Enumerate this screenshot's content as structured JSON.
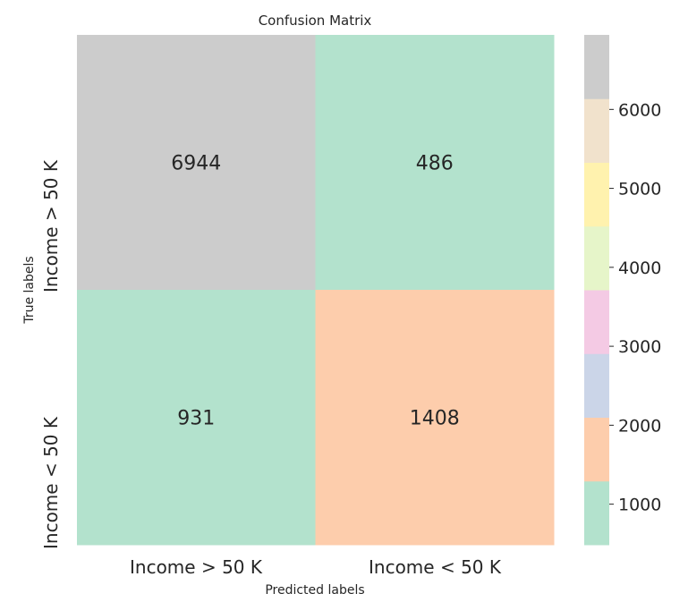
{
  "chart_data": {
    "type": "heatmap",
    "title": "Confusion Matrix",
    "xlabel": "Predicted labels",
    "ylabel": "True labels",
    "x_categories": [
      "Income > 50 K",
      "Income < 50 K"
    ],
    "y_categories": [
      "Income > 50 K",
      "Income < 50 K"
    ],
    "values": [
      [
        6944,
        486
      ],
      [
        931,
        1408
      ]
    ],
    "colorbar": {
      "range": [
        486,
        6944
      ],
      "ticks": [
        1000,
        2000,
        3000,
        4000,
        5000,
        6000
      ],
      "tick_labels": [
        "1000",
        "2000",
        "3000",
        "4000",
        "5000",
        "6000"
      ],
      "colors": [
        "#b3e2cd",
        "#fdcdac",
        "#cbd5e8",
        "#f4cae4",
        "#e6f5c9",
        "#fff2ae",
        "#f1e2cc",
        "#cccccc"
      ]
    },
    "grid": false
  }
}
